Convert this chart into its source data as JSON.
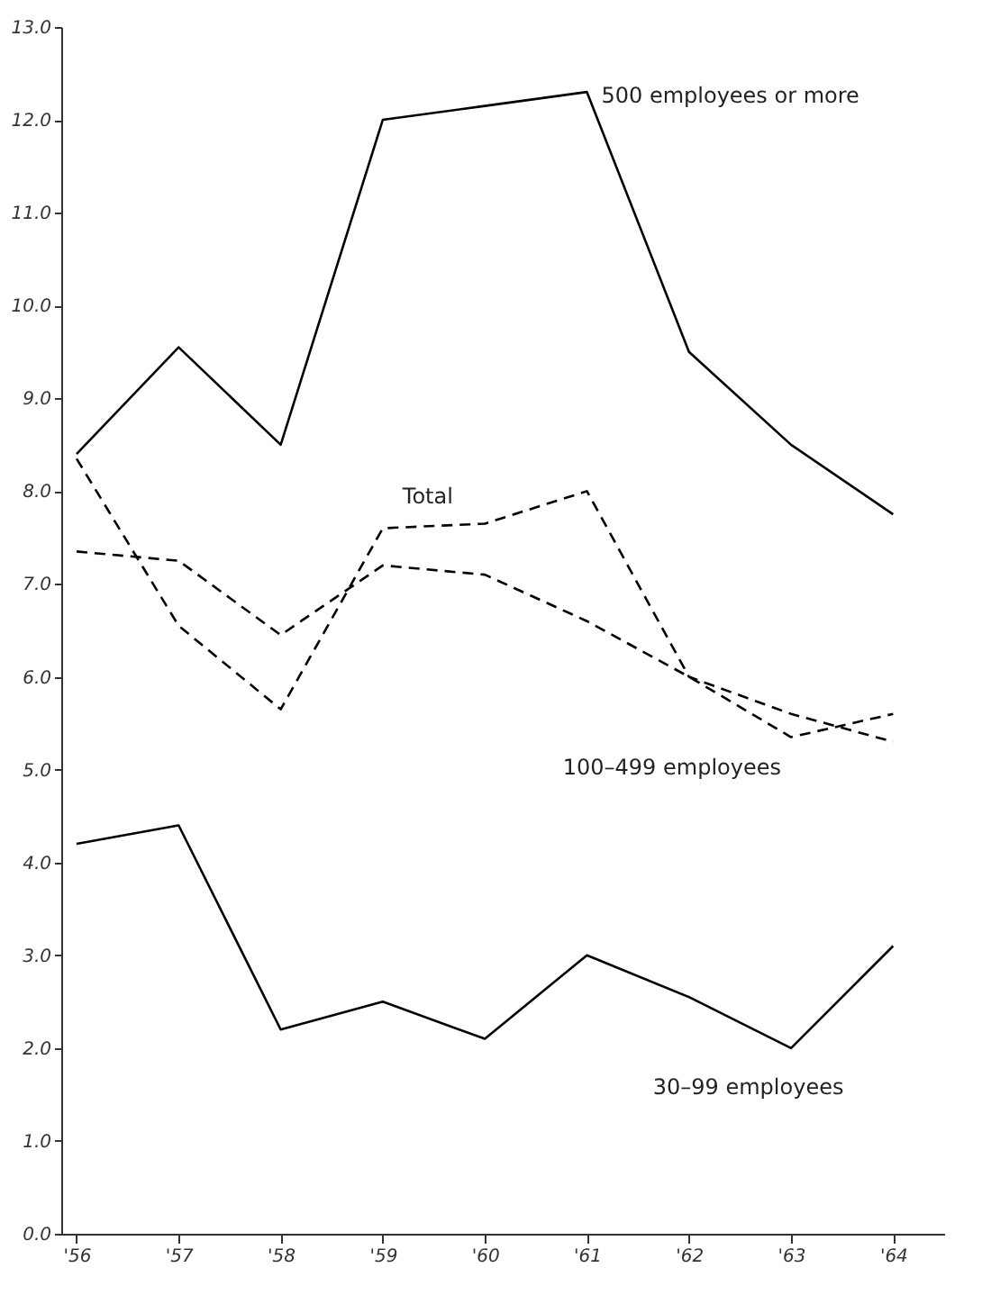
{
  "chart_data": {
    "type": "line",
    "categories": [
      "'56",
      "'57",
      "'58",
      "'59",
      "'60",
      "'61",
      "'62",
      "'63",
      "'64"
    ],
    "series": [
      {
        "name": "500 employees or more",
        "color": "#000000",
        "line_style": "solid",
        "values": [
          8.4,
          9.55,
          8.5,
          12.0,
          12.15,
          12.3,
          9.5,
          8.5,
          7.75
        ]
      },
      {
        "name": "Total",
        "color": "#000000",
        "line_style": "dashed",
        "values": [
          8.35,
          6.55,
          5.65,
          7.6,
          7.65,
          8.0,
          6.0,
          5.6,
          5.3
        ]
      },
      {
        "name": "100–499 employees",
        "color": "#000000",
        "line_style": "dashed",
        "values": [
          7.35,
          7.25,
          6.45,
          7.2,
          7.1,
          6.6,
          6.0,
          5.35,
          5.6
        ]
      },
      {
        "name": "30–99 employees",
        "color": "#000000",
        "line_style": "solid",
        "values": [
          4.2,
          4.4,
          2.2,
          2.5,
          2.1,
          3.0,
          2.55,
          2.0,
          3.1
        ]
      }
    ],
    "ylim": [
      0,
      13
    ],
    "yticks": [
      {
        "value": 0,
        "label": "0.0"
      },
      {
        "value": 1,
        "label": "1.0"
      },
      {
        "value": 2,
        "label": "2.0"
      },
      {
        "value": 3,
        "label": "3.0"
      },
      {
        "value": 4,
        "label": "4.0"
      },
      {
        "value": 5,
        "label": "5.0"
      },
      {
        "value": 6,
        "label": "6.0"
      },
      {
        "value": 7,
        "label": "7.0"
      },
      {
        "value": 8,
        "label": "8.0"
      },
      {
        "value": 9,
        "label": "9.0"
      },
      {
        "value": 10,
        "label": "10.0"
      },
      {
        "value": 11,
        "label": "11.0"
      },
      {
        "value": 12,
        "label": "12.0"
      },
      {
        "value": 13,
        "label": "13.0"
      }
    ],
    "grid": false,
    "marker": "none"
  }
}
